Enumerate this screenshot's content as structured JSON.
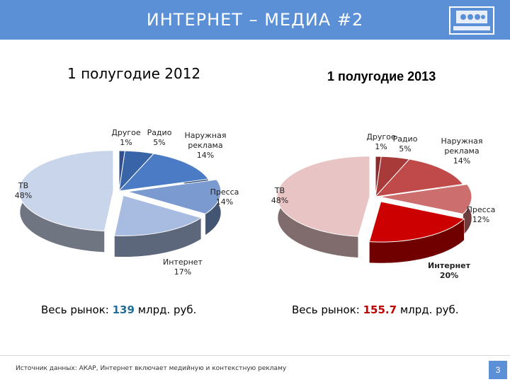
{
  "header": {
    "title": "ИНТЕРНЕТ – МЕДИА #2"
  },
  "chart_data": [
    {
      "type": "pie",
      "title": "1 полугодие 2012",
      "categories": [
        "Другое",
        "Радио",
        "Наружная реклама",
        "Пресса",
        "Интернет",
        "ТВ"
      ],
      "values": [
        1,
        5,
        14,
        14,
        17,
        48
      ],
      "value_labels": [
        "1%",
        "5%",
        "14%",
        "14%",
        "17%",
        "48%"
      ],
      "colors": [
        "#2f4f8f",
        "#3a64a8",
        "#4a7bc4",
        "#7b9ad0",
        "#a8bbe0",
        "#c9d5eb"
      ],
      "total_label": "Весь рынок: ",
      "total_value": "139",
      "total_unit": " млрд. руб."
    },
    {
      "type": "pie",
      "title": "1 полугодие 2013",
      "categories": [
        "Другое",
        "Радио",
        "Наружная реклама",
        "Пресса",
        "Интернет",
        "ТВ"
      ],
      "values": [
        1,
        5,
        14,
        12,
        20,
        48
      ],
      "value_labels": [
        "1%",
        "5%",
        "14%",
        "12%",
        "20%",
        "48%"
      ],
      "colors": [
        "#8c2a2a",
        "#a83a3a",
        "#c04a4a",
        "#cc6e6e",
        "#cc0000",
        "#e8c4c4"
      ],
      "total_label": "Весь рынок: ",
      "total_value": "155.7",
      "total_unit": " млрд. руб."
    }
  ],
  "footer": {
    "source": "Источник данных: АКАР, Интернет включает медийную и контекстную рекламу",
    "page": "3"
  }
}
